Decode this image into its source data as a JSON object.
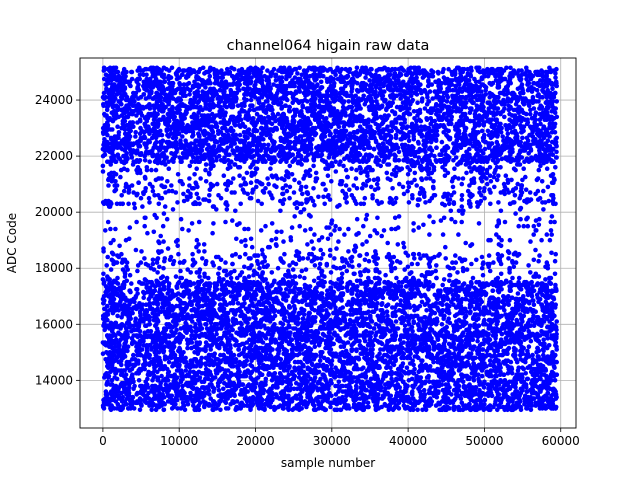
{
  "chart_data": {
    "type": "scatter",
    "title": "channel064 higain raw data",
    "xlabel": "sample number",
    "ylabel": "ADC Code",
    "xlim": [
      -3000,
      62000
    ],
    "ylim": [
      12300,
      25500
    ],
    "xticks": [
      0,
      10000,
      20000,
      30000,
      40000,
      50000,
      60000
    ],
    "yticks": [
      14000,
      16000,
      18000,
      20000,
      22000,
      24000
    ],
    "grid": true,
    "legend": "none",
    "marker_color": "#0000ff",
    "series": [
      {
        "x_range": [
          0,
          59500
        ],
        "y_range": [
          12950,
          25150
        ],
        "bands": [
          {
            "y_range": [
              12950,
              15600
            ],
            "density": "dense"
          },
          {
            "y_range": [
              15600,
              17500
            ],
            "density": "dense"
          },
          {
            "y_range": [
              17500,
              18500
            ],
            "density": "medium"
          },
          {
            "y_range": [
              18500,
              20300
            ],
            "density": "sparse"
          },
          {
            "y_range": [
              20300,
              21800
            ],
            "density": "medium"
          },
          {
            "y_range": [
              21800,
              25150
            ],
            "density": "dense"
          }
        ]
      }
    ]
  }
}
